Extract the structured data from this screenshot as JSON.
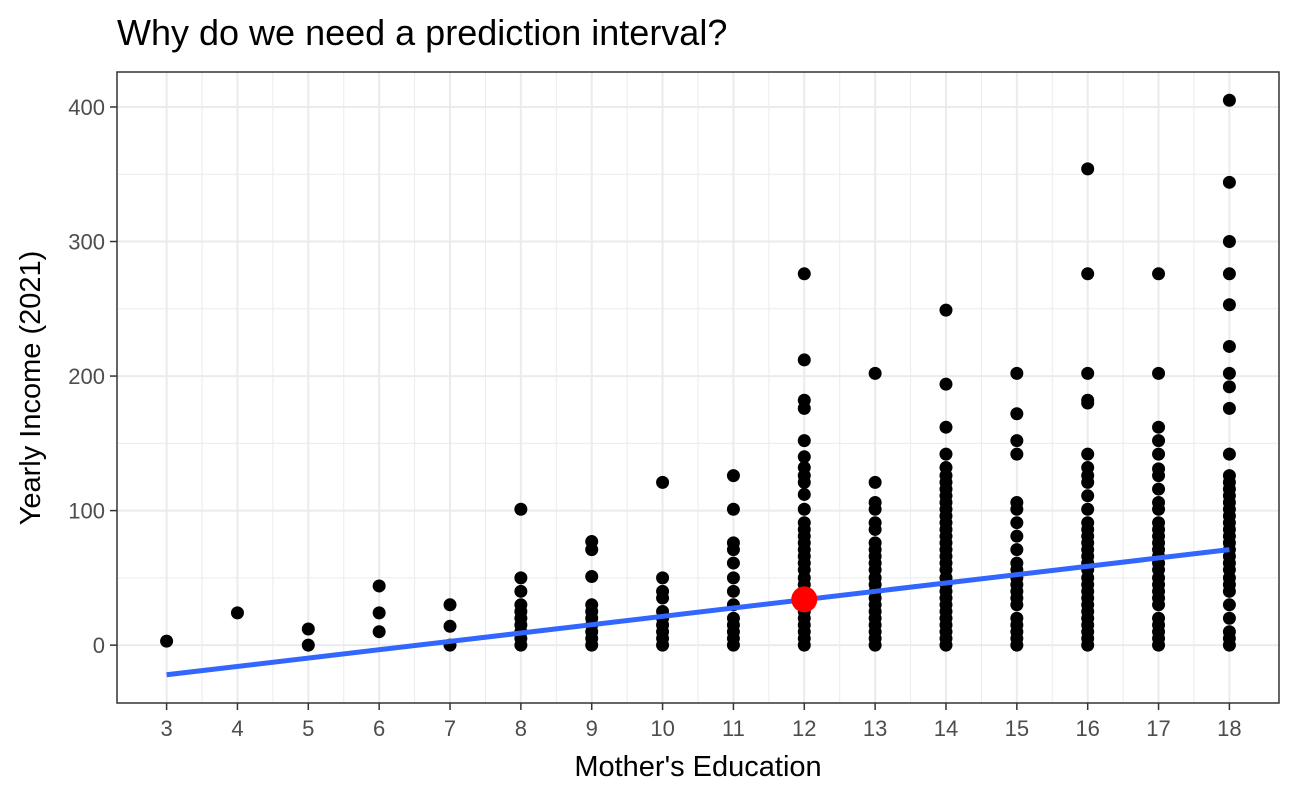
{
  "chart_data": {
    "type": "scatter",
    "title": "Why do we need a prediction interval?",
    "xlabel": "Mother's Education",
    "ylabel": "Yearly Income (2021)",
    "xlim": [
      2.3,
      18.7
    ],
    "ylim": [
      -43,
      426
    ],
    "x_ticks": [
      3,
      4,
      5,
      6,
      7,
      8,
      9,
      10,
      11,
      12,
      13,
      14,
      15,
      16,
      17,
      18
    ],
    "y_ticks": [
      0,
      100,
      200,
      300,
      400
    ],
    "grid": true,
    "colors": {
      "points": "#000000",
      "fit_line": "#3366FF",
      "highlight": "#FF0000",
      "grid": "#EBEBEB",
      "panel_border": "#333333"
    },
    "points": [
      {
        "x": 3,
        "y": [
          3
        ]
      },
      {
        "x": 4,
        "y": [
          24
        ]
      },
      {
        "x": 5,
        "y": [
          12,
          0
        ]
      },
      {
        "x": 6,
        "y": [
          44,
          24,
          10
        ]
      },
      {
        "x": 7,
        "y": [
          30,
          14,
          0
        ]
      },
      {
        "x": 8,
        "y": [
          101,
          50,
          40,
          30,
          25,
          20,
          15,
          10,
          5,
          0
        ]
      },
      {
        "x": 9,
        "y": [
          77,
          71,
          51,
          30,
          25,
          20,
          15,
          10,
          5,
          0
        ]
      },
      {
        "x": 10,
        "y": [
          121,
          50,
          40,
          35,
          25,
          20,
          15,
          10,
          5,
          0
        ]
      },
      {
        "x": 11,
        "y": [
          126,
          101,
          76,
          71,
          61,
          50,
          40,
          30,
          20,
          15,
          10,
          5,
          0
        ]
      },
      {
        "x": 12,
        "y": [
          276,
          212,
          182,
          176,
          152,
          140,
          132,
          126,
          121,
          112,
          101,
          91,
          86,
          81,
          76,
          71,
          66,
          61,
          56,
          50,
          45,
          40,
          35,
          30,
          25,
          20,
          15,
          10,
          5,
          0
        ]
      },
      {
        "x": 13,
        "y": [
          202,
          121,
          106,
          101,
          91,
          86,
          76,
          71,
          66,
          61,
          56,
          50,
          45,
          40,
          35,
          30,
          25,
          20,
          15,
          10,
          5,
          0
        ]
      },
      {
        "x": 14,
        "y": [
          249,
          194,
          162,
          142,
          132,
          126,
          121,
          116,
          111,
          106,
          101,
          96,
          91,
          86,
          81,
          76,
          71,
          66,
          61,
          56,
          50,
          45,
          40,
          35,
          30,
          25,
          20,
          15,
          10,
          5,
          0
        ]
      },
      {
        "x": 15,
        "y": [
          202,
          172,
          152,
          142,
          106,
          101,
          91,
          81,
          71,
          61,
          56,
          50,
          45,
          40,
          35,
          30,
          20,
          15,
          10,
          5,
          0
        ]
      },
      {
        "x": 16,
        "y": [
          354,
          276,
          202,
          182,
          180,
          142,
          132,
          126,
          121,
          111,
          101,
          91,
          86,
          81,
          76,
          71,
          66,
          61,
          56,
          50,
          45,
          40,
          35,
          30,
          25,
          20,
          15,
          10,
          5,
          0
        ]
      },
      {
        "x": 17,
        "y": [
          276,
          202,
          162,
          152,
          142,
          131,
          126,
          116,
          106,
          101,
          91,
          86,
          81,
          76,
          71,
          66,
          61,
          56,
          50,
          45,
          40,
          35,
          30,
          20,
          15,
          10,
          5,
          0
        ]
      },
      {
        "x": 18,
        "y": [
          405,
          344,
          300,
          276,
          253,
          222,
          202,
          192,
          176,
          142,
          126,
          121,
          116,
          111,
          106,
          101,
          96,
          91,
          86,
          81,
          76,
          71,
          66,
          61,
          56,
          50,
          45,
          40,
          30,
          20,
          10,
          5,
          0
        ]
      }
    ],
    "fit_line": {
      "x": [
        3,
        18
      ],
      "y": [
        -22,
        71
      ]
    },
    "highlight_point": {
      "x": 12,
      "y": 34
    }
  }
}
